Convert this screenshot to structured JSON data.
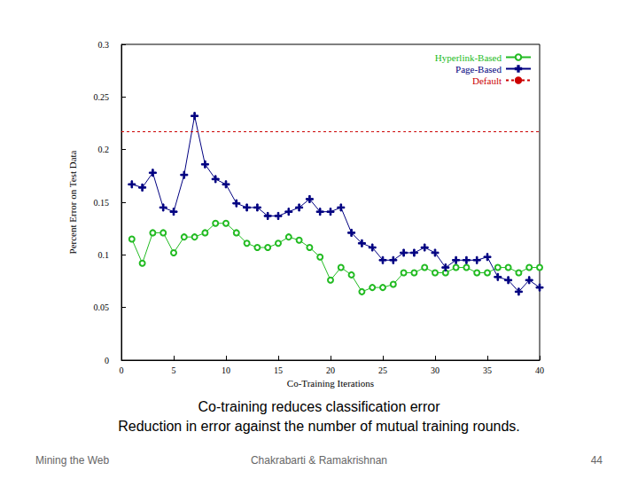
{
  "chart_data": {
    "type": "line",
    "x_label": "Co-Training Iterations",
    "y_label": "Percent Error on Test Data",
    "x": [
      0,
      1,
      2,
      3,
      4,
      5,
      6,
      7,
      8,
      9,
      10,
      11,
      12,
      13,
      14,
      15,
      16,
      17,
      18,
      19,
      20,
      21,
      22,
      23,
      24,
      25,
      26,
      27,
      28,
      29,
      30,
      31,
      32,
      33,
      34,
      35,
      36,
      37,
      38,
      39,
      40
    ],
    "series": [
      {
        "name": "Hyperlink-Based",
        "color": "#22bb22",
        "marker": "circle",
        "line_style": "solid",
        "values": [
          null,
          0.115,
          0.092,
          0.121,
          0.121,
          0.102,
          0.117,
          0.117,
          0.121,
          0.13,
          0.13,
          0.121,
          0.111,
          0.107,
          0.107,
          0.111,
          0.117,
          0.114,
          0.107,
          0.098,
          0.076,
          0.088,
          0.081,
          0.065,
          0.069,
          0.069,
          0.072,
          0.083,
          0.083,
          0.088,
          0.083,
          0.083,
          0.088,
          0.088,
          0.083,
          0.083,
          0.088,
          0.088,
          0.083,
          0.088,
          0.088
        ]
      },
      {
        "name": "Page-Based",
        "color": "#000080",
        "marker": "plus",
        "line_style": "solid",
        "values": [
          null,
          0.167,
          0.164,
          0.178,
          0.145,
          0.141,
          0.176,
          0.232,
          0.186,
          0.172,
          0.167,
          0.149,
          0.145,
          0.145,
          0.137,
          0.137,
          0.141,
          0.145,
          0.153,
          0.141,
          0.141,
          0.145,
          0.121,
          0.111,
          0.107,
          0.095,
          0.095,
          0.102,
          0.102,
          0.107,
          0.102,
          0.088,
          0.095,
          0.095,
          0.095,
          0.098,
          0.079,
          0.076,
          0.065,
          0.076,
          0.069
        ]
      },
      {
        "name": "Default",
        "color": "#cc0000",
        "marker": "none",
        "line_style": "dashed",
        "values": [
          0.217,
          0.217,
          0.217,
          0.217,
          0.217,
          0.217,
          0.217,
          0.217,
          0.217,
          0.217,
          0.217,
          0.217,
          0.217,
          0.217,
          0.217,
          0.217,
          0.217,
          0.217,
          0.217,
          0.217,
          0.217,
          0.217,
          0.217,
          0.217,
          0.217,
          0.217,
          0.217,
          0.217,
          0.217,
          0.217,
          0.217,
          0.217,
          0.217,
          0.217,
          0.217,
          0.217,
          0.217,
          0.217,
          0.217,
          0.217,
          0.217
        ]
      }
    ],
    "xlim": [
      0,
      40
    ],
    "xticks": [
      0,
      5,
      10,
      15,
      20,
      25,
      30,
      35,
      40
    ],
    "ylim": [
      0,
      0.3
    ],
    "yticks": [
      0,
      0.05,
      0.1,
      0.15,
      0.2,
      0.25,
      0.3
    ],
    "grid": false,
    "legend": "top-right"
  },
  "caption": [
    "Co-training reduces classification error",
    "Reduction in error against the number of mutual training rounds."
  ],
  "footer": {
    "left": "Mining the Web",
    "center": "Chakrabarti & Ramakrishnan",
    "right": 44
  }
}
